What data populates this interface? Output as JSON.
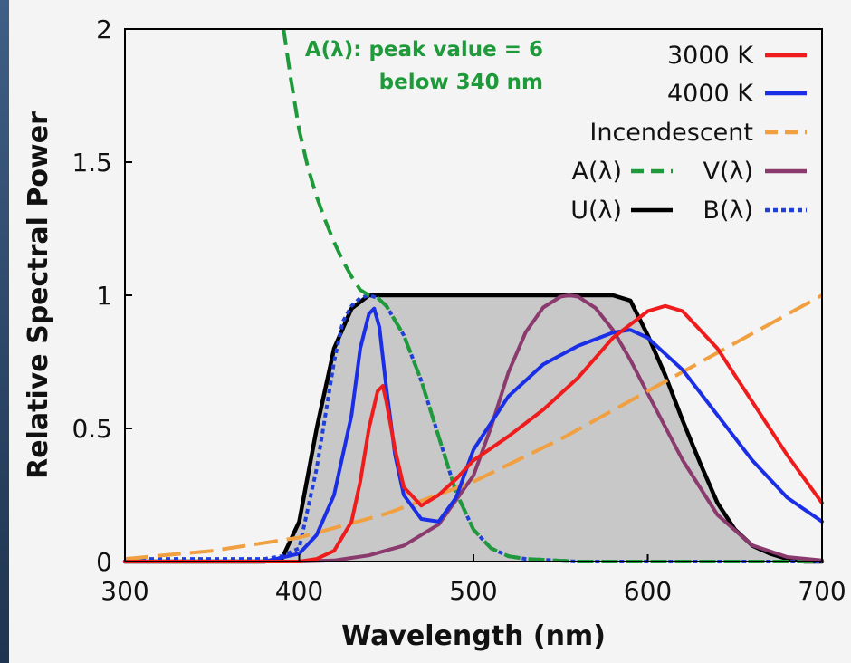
{
  "chart_data": {
    "type": "line",
    "xlabel": "Wavelength (nm)",
    "ylabel": "Relative Spectral Power",
    "xlim": [
      300,
      700
    ],
    "ylim": [
      0,
      2
    ],
    "xticks": [
      "300",
      "400",
      "500",
      "600",
      "700"
    ],
    "yticks": [
      "0",
      "0.5",
      "1",
      "1.5",
      "2"
    ],
    "legend_position": "top-right",
    "annotation": [
      "A(λ): peak value = 6",
      "below 340 nm"
    ],
    "series": [
      {
        "name": "U(λ)",
        "color": "#000000",
        "style": "solid-filled",
        "fill": "#c8c8c8",
        "x": [
          300,
          380,
          390,
          400,
          410,
          420,
          430,
          440,
          450,
          470,
          500,
          550,
          580,
          590,
          600,
          610,
          620,
          630,
          640,
          650,
          660,
          670,
          680,
          690,
          700
        ],
        "y": [
          0,
          0,
          0.01,
          0.15,
          0.5,
          0.8,
          0.95,
          1.0,
          1.0,
          1.0,
          1.0,
          1.0,
          1.0,
          0.98,
          0.85,
          0.7,
          0.53,
          0.37,
          0.22,
          0.12,
          0.06,
          0.03,
          0.01,
          0.0,
          0
        ]
      },
      {
        "name": "B(λ)",
        "color": "#1f3fd8",
        "style": "dotted",
        "x": [
          300,
          380,
          390,
          400,
          410,
          420,
          425,
          430,
          435,
          440,
          445,
          450,
          460,
          470,
          480,
          490,
          500,
          510,
          520,
          530,
          560,
          700
        ],
        "y": [
          0.01,
          0.01,
          0.02,
          0.05,
          0.35,
          0.75,
          0.9,
          0.96,
          0.99,
          1.0,
          0.99,
          0.96,
          0.85,
          0.68,
          0.47,
          0.26,
          0.12,
          0.05,
          0.02,
          0.01,
          0.0,
          0.0
        ]
      },
      {
        "name": "A(λ)",
        "color": "#1f9a3a",
        "style": "dashed",
        "x": [
          391,
          395,
          400,
          405,
          410,
          415,
          420,
          425,
          430,
          435,
          440,
          445,
          450,
          460,
          470,
          480,
          490,
          500,
          510,
          520,
          530,
          560,
          700
        ],
        "y": [
          2.0,
          1.82,
          1.62,
          1.48,
          1.37,
          1.28,
          1.2,
          1.13,
          1.07,
          1.02,
          1.0,
          0.99,
          0.96,
          0.85,
          0.68,
          0.47,
          0.26,
          0.12,
          0.05,
          0.02,
          0.01,
          0.0,
          0.0
        ]
      },
      {
        "name": "V(λ)",
        "color": "#8b3a6e",
        "style": "solid",
        "x": [
          400,
          420,
          440,
          460,
          480,
          500,
          510,
          520,
          530,
          540,
          550,
          555,
          560,
          570,
          580,
          590,
          600,
          620,
          640,
          660,
          680,
          700
        ],
        "y": [
          0.0,
          0.004,
          0.023,
          0.06,
          0.139,
          0.323,
          0.503,
          0.71,
          0.862,
          0.954,
          0.995,
          1.0,
          0.995,
          0.952,
          0.87,
          0.757,
          0.631,
          0.381,
          0.175,
          0.061,
          0.017,
          0.004
        ]
      },
      {
        "name": "Incendescent",
        "color": "#f0a040",
        "style": "long-dash",
        "x": [
          300,
          350,
          400,
          450,
          500,
          550,
          600,
          650,
          700
        ],
        "y": [
          0.01,
          0.04,
          0.09,
          0.18,
          0.3,
          0.46,
          0.64,
          0.82,
          1.0
        ]
      },
      {
        "name": "4000 K",
        "color": "#1a2ee6",
        "style": "solid",
        "x": [
          300,
          380,
          400,
          410,
          420,
          430,
          435,
          440,
          443,
          446,
          450,
          455,
          460,
          470,
          480,
          490,
          500,
          520,
          540,
          560,
          580,
          590,
          600,
          620,
          640,
          660,
          680,
          700
        ],
        "y": [
          0,
          0,
          0.03,
          0.1,
          0.25,
          0.55,
          0.8,
          0.93,
          0.95,
          0.88,
          0.65,
          0.4,
          0.25,
          0.16,
          0.15,
          0.24,
          0.42,
          0.62,
          0.74,
          0.81,
          0.86,
          0.87,
          0.84,
          0.72,
          0.55,
          0.38,
          0.24,
          0.15
        ]
      },
      {
        "name": "3000 K",
        "color": "#ee1c1c",
        "style": "solid",
        "x": [
          300,
          400,
          410,
          420,
          430,
          435,
          440,
          445,
          448,
          450,
          455,
          460,
          470,
          480,
          490,
          500,
          520,
          540,
          560,
          580,
          600,
          610,
          620,
          640,
          660,
          680,
          700
        ],
        "y": [
          0,
          0,
          0.01,
          0.04,
          0.15,
          0.3,
          0.5,
          0.64,
          0.66,
          0.6,
          0.42,
          0.28,
          0.21,
          0.25,
          0.31,
          0.38,
          0.47,
          0.57,
          0.69,
          0.84,
          0.94,
          0.96,
          0.94,
          0.8,
          0.6,
          0.4,
          0.22
        ]
      }
    ]
  }
}
